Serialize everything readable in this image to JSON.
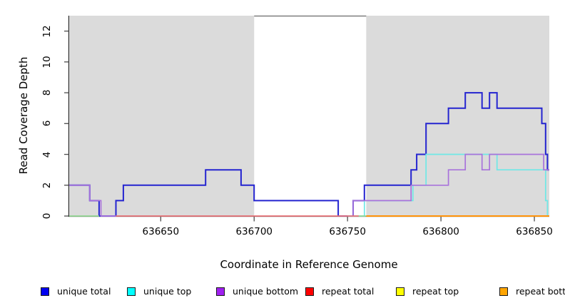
{
  "chart_data": {
    "type": "line",
    "subtype": "step-coverage",
    "title": "",
    "xlabel": "Coordinate in Reference Genome",
    "ylabel": "Read Coverage Depth",
    "xlim": [
      636601,
      636858
    ],
    "ylim": [
      0,
      13
    ],
    "x_ticks": [
      636650,
      636700,
      636750,
      636800,
      636850
    ],
    "y_ticks": [
      0,
      2,
      4,
      6,
      8,
      10,
      12
    ],
    "grid": false,
    "legend_position": "bottom",
    "colors": {
      "shading": "#dbdbdb",
      "gap_border": "#7d7d7d",
      "axis": "#333333",
      "tick": "#4d4d4d"
    },
    "shaded_regions": [
      {
        "from": 636601,
        "to": 636700
      },
      {
        "from": 636760,
        "to": 636858
      }
    ],
    "gap_region": {
      "from": 636700,
      "to": 636760
    },
    "series": [
      {
        "name": "unique total",
        "line_color": "#2424d0",
        "width": 2,
        "parts": [
          {
            "steps": [
              [
                636601,
                2
              ],
              [
                636612,
                1
              ],
              [
                636617,
                0
              ],
              [
                636626,
                1
              ],
              [
                636630,
                2
              ],
              [
                636674,
                3
              ],
              [
                636693,
                2
              ],
              [
                636700,
                1
              ],
              [
                636745,
                0
              ],
              [
                636753,
                1
              ],
              [
                636759,
                2
              ],
              [
                636784,
                3
              ],
              [
                636787,
                4
              ],
              [
                636792,
                6
              ],
              [
                636804,
                7
              ],
              [
                636813,
                8
              ],
              [
                636822,
                7
              ],
              [
                636826,
                8
              ],
              [
                636830,
                7
              ],
              [
                636854,
                6
              ],
              [
                636856,
                4
              ],
              [
                636857,
                3
              ]
            ],
            "end": 636858
          }
        ]
      },
      {
        "name": "unique top",
        "line_color": "#6fe8e6",
        "width": 1.7,
        "parts": [
          {
            "steps": [
              [
                636750,
                0
              ],
              [
                636759,
                1
              ],
              [
                636785,
                2
              ],
              [
                636792,
                4
              ],
              [
                636830,
                3
              ],
              [
                636856,
                1
              ],
              [
                636857,
                0
              ]
            ],
            "end": 636858
          }
        ]
      },
      {
        "name": "unique bottom",
        "line_color": "#a873db",
        "width": 1.7,
        "parts": [
          {
            "steps": [
              [
                636601,
                2
              ],
              [
                636612,
                1
              ],
              [
                636618,
                0
              ]
            ],
            "end": 636626
          },
          {
            "steps": [
              [
                636753,
                0
              ],
              [
                636753,
                1
              ],
              [
                636784,
                2
              ],
              [
                636804,
                3
              ],
              [
                636813,
                4
              ],
              [
                636822,
                3
              ],
              [
                636826,
                4
              ],
              [
                636855,
                3
              ]
            ],
            "end": 636858
          }
        ]
      },
      {
        "name": "repeat total",
        "line_color": "#e87076",
        "width": 1.7,
        "parts": [
          {
            "steps": [
              [
                636626,
                0
              ]
            ],
            "end": 636756
          }
        ]
      },
      {
        "name": "repeat top",
        "line_color": "#93d793",
        "width": 1.7,
        "parts": [
          {
            "steps": [
              [
                636601,
                0
              ]
            ],
            "end": 636617
          },
          {
            "steps": [
              [
                636756,
                0
              ]
            ],
            "end": 636760
          }
        ]
      },
      {
        "name": "repeat bottom",
        "line_color": "#ff9208",
        "width": 2,
        "parts": [
          {
            "steps": [
              [
                636760,
                0
              ]
            ],
            "end": 636858
          }
        ]
      }
    ]
  },
  "legend": {
    "items": [
      {
        "label": "unique total",
        "color": "#0000f0"
      },
      {
        "label": "unique top",
        "color": "#00ffff"
      },
      {
        "label": "unique bottom",
        "color": "#a020f0"
      },
      {
        "label": "repeat total",
        "color": "#ff0000"
      },
      {
        "label": "repeat top",
        "color": "#ffff00"
      },
      {
        "label": "repeat bottom",
        "color": "#ffa500"
      }
    ]
  }
}
